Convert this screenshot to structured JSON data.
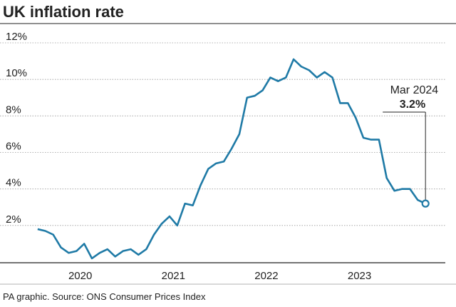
{
  "chart_data": {
    "type": "line",
    "title": "UK inflation rate",
    "source": "PA graphic. Source: ONS Consumer Prices Index",
    "x": [
      2020,
      2020.083,
      2020.167,
      2020.25,
      2020.333,
      2020.417,
      2020.5,
      2020.583,
      2020.667,
      2020.75,
      2020.833,
      2020.917,
      2021,
      2021.083,
      2021.167,
      2021.25,
      2021.333,
      2021.417,
      2021.5,
      2021.583,
      2021.667,
      2021.75,
      2021.833,
      2021.917,
      2022,
      2022.083,
      2022.167,
      2022.25,
      2022.333,
      2022.417,
      2022.5,
      2022.583,
      2022.667,
      2022.75,
      2022.833,
      2022.917,
      2023,
      2023.083,
      2023.167,
      2023.25,
      2023.333,
      2023.417,
      2023.5,
      2023.583,
      2023.667,
      2023.75,
      2023.833,
      2023.917,
      2024,
      2024.083,
      2024.167
    ],
    "series": [
      {
        "name": "CPI",
        "color": "#1f7aa6",
        "values": [
          1.8,
          1.7,
          1.5,
          0.8,
          0.5,
          0.6,
          1.0,
          0.2,
          0.5,
          0.7,
          0.3,
          0.6,
          0.7,
          0.4,
          0.7,
          1.5,
          2.1,
          2.5,
          2.0,
          3.2,
          3.1,
          4.2,
          5.1,
          5.4,
          5.5,
          6.2,
          7.0,
          9.0,
          9.1,
          9.4,
          10.1,
          9.9,
          10.1,
          11.1,
          10.7,
          10.5,
          10.1,
          10.4,
          10.1,
          8.7,
          8.7,
          7.9,
          6.8,
          6.7,
          6.7,
          4.6,
          3.9,
          4.0,
          4.0,
          3.4,
          3.2
        ]
      }
    ],
    "annotation": {
      "date": "Mar 2024",
      "text": "3.2%"
    },
    "xlim": [
      2019.94,
      2024.38
    ],
    "xticks": [
      {
        "value": 2020.458,
        "label": "2020"
      },
      {
        "value": 2021.458,
        "label": "2021"
      },
      {
        "value": 2022.458,
        "label": "2022"
      },
      {
        "value": 2023.458,
        "label": "2023"
      }
    ],
    "ylim": [
      0,
      12
    ],
    "yticks": [
      {
        "value": 2,
        "label": "2%"
      },
      {
        "value": 4,
        "label": "4%"
      },
      {
        "value": 6,
        "label": "6%"
      },
      {
        "value": 8,
        "label": "8%"
      },
      {
        "value": 10,
        "label": "10%"
      },
      {
        "value": 12,
        "label": "12%"
      }
    ],
    "grid": true
  }
}
